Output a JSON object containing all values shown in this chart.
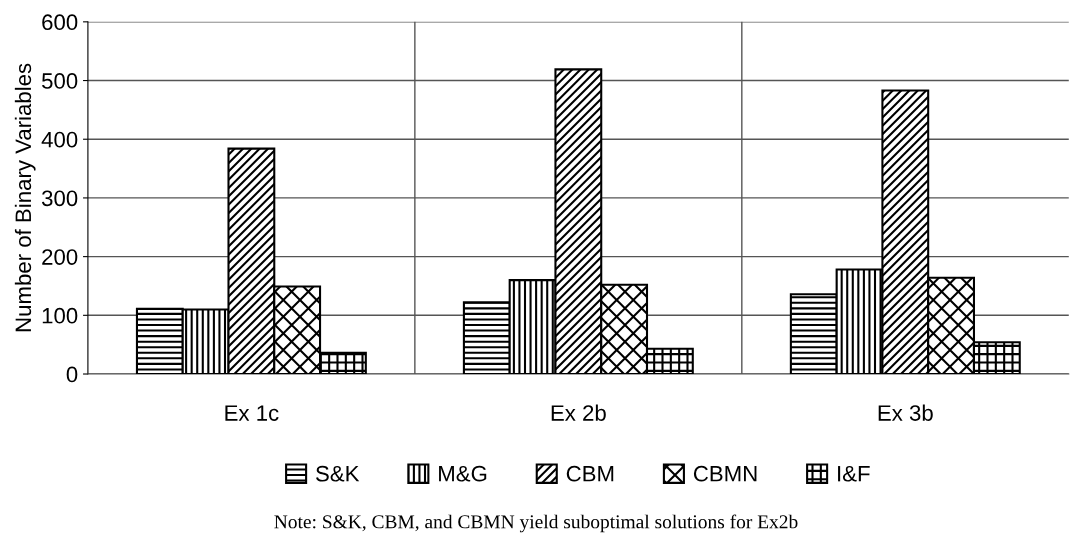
{
  "chart_data": {
    "type": "bar",
    "ylabel": "Number of Binary Variables",
    "categories": [
      "Ex 1c",
      "Ex 2b",
      "Ex 3b"
    ],
    "series": [
      {
        "name": "S&K",
        "color": "#000000",
        "values": [
          111,
          122,
          136
        ]
      },
      {
        "name": "M&G",
        "color": "#000000",
        "values": [
          110,
          160,
          178
        ]
      },
      {
        "name": "CBM",
        "color": "#000000",
        "values": [
          384,
          519,
          483
        ]
      },
      {
        "name": "CBMN",
        "color": "#000000",
        "values": [
          149,
          152,
          164
        ]
      },
      {
        "name": "I&F",
        "color": "#000000",
        "values": [
          36,
          43,
          54
        ]
      }
    ],
    "ylim": [
      0,
      600
    ],
    "yticks": [
      0,
      100,
      200,
      300,
      400,
      500,
      600
    ],
    "grid": true,
    "legend": "bottom",
    "annotations": [
      "Note: S&K, CBM, and CBMN yield suboptimal solutions for Ex2b"
    ]
  }
}
